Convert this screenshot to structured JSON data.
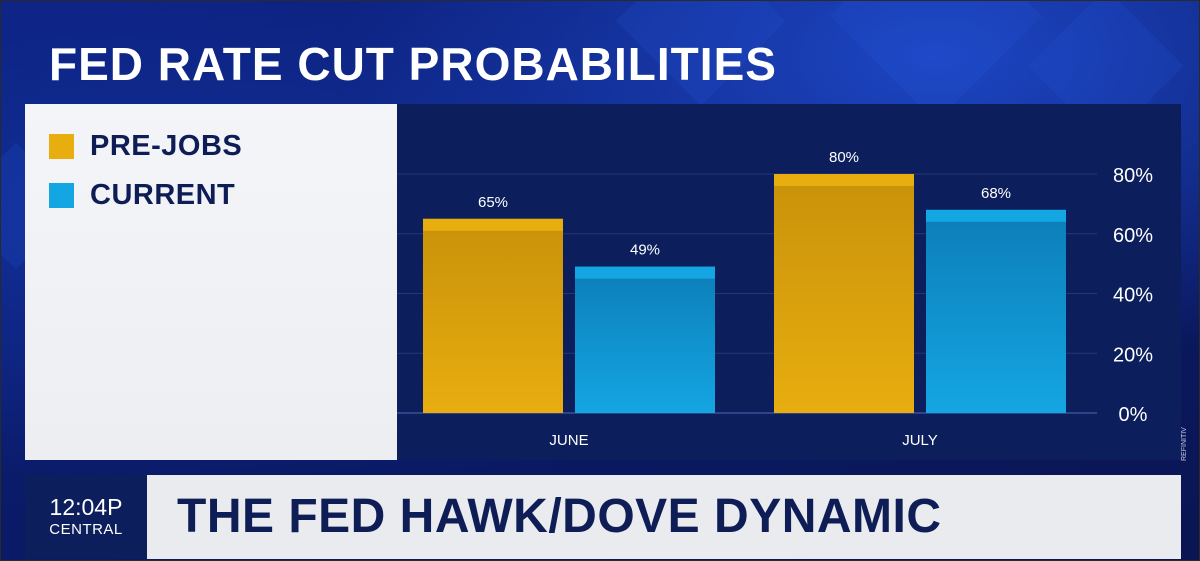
{
  "title": "FED RATE CUT PROBABILITIES",
  "legend": [
    {
      "label": "PRE-JOBS",
      "color": "#e8ad0f"
    },
    {
      "label": "CURRENT",
      "color": "#14a6e2"
    }
  ],
  "lower_third": {
    "time": "12:04P",
    "zone": "CENTRAL",
    "headline": "THE FED HAWK/DOVE DYNAMIC"
  },
  "source": "REFINITIV",
  "chart_data": {
    "type": "bar",
    "title": "FED RATE CUT PROBABILITIES",
    "categories": [
      "JUNE",
      "JULY"
    ],
    "series": [
      {
        "name": "PRE-JOBS",
        "values": [
          65,
          80
        ],
        "labels": [
          "65%",
          "80%"
        ],
        "color": "#e8ad0f"
      },
      {
        "name": "CURRENT",
        "values": [
          49,
          68
        ],
        "labels": [
          "49%",
          "68%"
        ],
        "color": "#14a6e2"
      }
    ],
    "y_ticks": [
      0,
      20,
      40,
      60,
      80
    ],
    "y_tick_labels": [
      "0%",
      "20%",
      "40%",
      "60%",
      "80%"
    ],
    "ylim": [
      0,
      80
    ],
    "y_axis_side": "right",
    "grid": true,
    "legend_position": "left"
  }
}
